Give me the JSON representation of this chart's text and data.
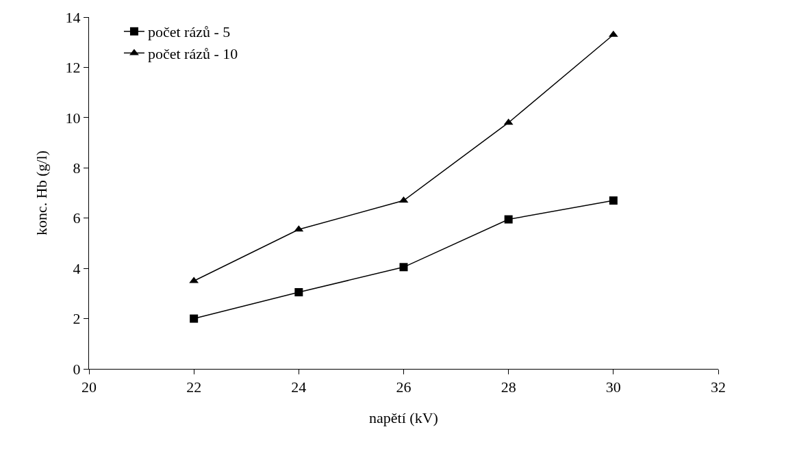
{
  "chart_data": {
    "type": "line",
    "xlabel": "napětí (kV)",
    "ylabel": "konc. Hb (g/l)",
    "x": [
      22,
      24,
      26,
      28,
      30
    ],
    "series": [
      {
        "name": "počet rázů - 5",
        "color": "#000000",
        "marker": "square",
        "values": [
          2.0,
          3.05,
          4.05,
          5.95,
          6.7
        ]
      },
      {
        "name": "počet rázů - 10",
        "color": "#000000",
        "marker": "triangle",
        "values": [
          3.5,
          5.55,
          6.7,
          9.8,
          13.3
        ]
      }
    ],
    "xlim": [
      20,
      32
    ],
    "xticks": [
      20,
      22,
      24,
      26,
      28,
      30,
      32
    ],
    "ylim": [
      0,
      14
    ],
    "yticks": [
      0,
      2,
      4,
      6,
      8,
      10,
      12,
      14
    ],
    "grid": false,
    "legend": "top left",
    "line_style": "solid"
  }
}
